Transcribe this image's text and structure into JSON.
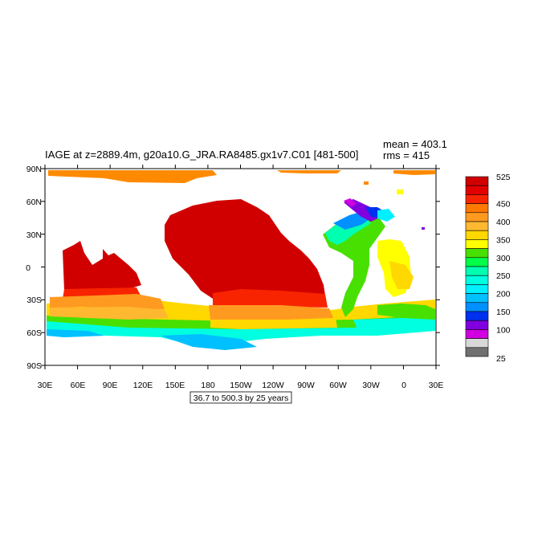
{
  "title": "IAGE at z=2889.4m, g20a10.G_JRA.RA8485.gx1v7.C01 [481-500]",
  "stats": {
    "mean": "mean = 403.1",
    "rms": "rms = 415"
  },
  "contour_info": "36.7 to 500.3 by 25 years",
  "lat_ticks": [
    "90N",
    "60N",
    "30N",
    "0",
    "30S",
    "60S",
    "90S"
  ],
  "lon_ticks": [
    "30E",
    "60E",
    "90E",
    "120E",
    "150E",
    "180",
    "150W",
    "120W",
    "90W",
    "60W",
    "30W",
    "0",
    "30E"
  ],
  "colorbar": {
    "colors": [
      "#d00000",
      "#e20000",
      "#f82400",
      "#ff7800",
      "#ff9a20",
      "#ffb830",
      "#ffd800",
      "#ffff00",
      "#48e000",
      "#00ff48",
      "#00ffb0",
      "#00ffe0",
      "#00f0ff",
      "#00c0ff",
      "#0090ff",
      "#0030f0",
      "#8000e0",
      "#d000e0",
      "#d8d8d8",
      "#707070"
    ],
    "labels": [
      "525",
      "450",
      "400",
      "350",
      "300",
      "250",
      "200",
      "150",
      "100",
      "25"
    ]
  }
}
